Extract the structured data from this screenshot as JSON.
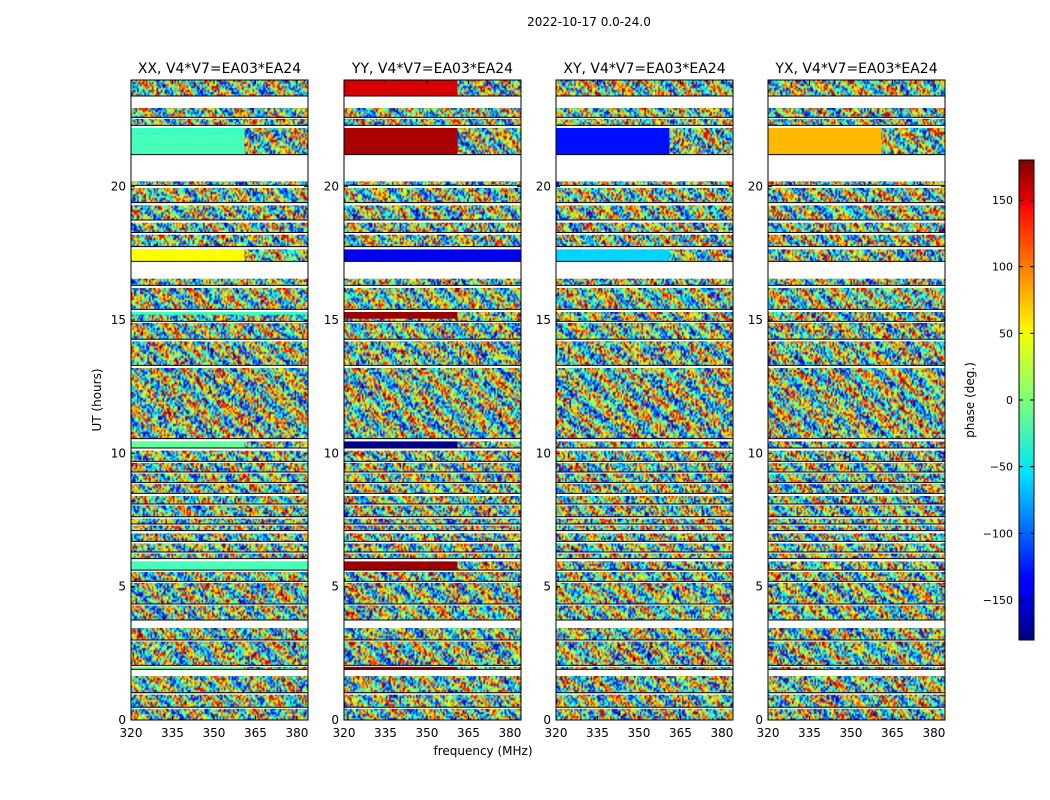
{
  "figure": {
    "suptitle": "2022-10-17 0.0-24.0",
    "xlabel": "frequency (MHz)",
    "ylabel": "UT (hours)"
  },
  "chart_data": {
    "type": "heatmap",
    "colormap": "jet",
    "x_range": [
      320,
      384
    ],
    "y_range": [
      0,
      24
    ],
    "x_ticks": [
      320,
      335,
      350,
      365,
      380
    ],
    "y_ticks": [
      0,
      5,
      10,
      15,
      20
    ],
    "colorbar": {
      "label": "phase (deg.)",
      "range": [
        -180,
        180
      ],
      "ticks": [
        150,
        100,
        50,
        0,
        -50,
        -100,
        -150
      ],
      "tick_labels": [
        "150",
        "100",
        "50",
        "0",
        "−50",
        "−100",
        "−150"
      ]
    },
    "gaps_hours": [
      [
        0.42,
        0.48
      ],
      [
        0.95,
        1.02
      ],
      [
        1.65,
        1.9
      ],
      [
        2.0,
        2.05
      ],
      [
        2.95,
        3.0
      ],
      [
        3.45,
        3.75
      ],
      [
        4.3,
        4.35
      ],
      [
        5.15,
        5.2
      ],
      [
        5.55,
        5.62
      ],
      [
        5.95,
        6.05
      ],
      [
        6.25,
        6.3
      ],
      [
        6.62,
        6.7
      ],
      [
        7.0,
        7.1
      ],
      [
        7.3,
        7.35
      ],
      [
        7.55,
        7.62
      ],
      [
        8.05,
        8.1
      ],
      [
        8.4,
        8.5
      ],
      [
        8.85,
        8.9
      ],
      [
        9.25,
        9.3
      ],
      [
        9.65,
        9.7
      ],
      [
        10.1,
        10.2
      ],
      [
        10.45,
        10.55
      ],
      [
        13.2,
        13.3
      ],
      [
        14.2,
        14.28
      ],
      [
        14.9,
        14.95
      ],
      [
        15.3,
        15.4
      ],
      [
        16.2,
        16.3
      ],
      [
        16.55,
        17.2
      ],
      [
        17.65,
        17.75
      ],
      [
        18.2,
        18.28
      ],
      [
        18.65,
        18.75
      ],
      [
        19.3,
        19.4
      ],
      [
        19.95,
        20.05
      ],
      [
        20.2,
        21.2
      ],
      [
        22.2,
        22.3
      ],
      [
        22.55,
        22.6
      ],
      [
        22.95,
        23.4
      ]
    ],
    "panels": [
      {
        "title": "XX, V4*V7=EA03*EA24",
        "solid_bands": [
          {
            "h0": 21.2,
            "h1": 22.0,
            "f1": 361,
            "phase": -20
          },
          {
            "h0": 22.0,
            "h1": 22.2,
            "f1": 361,
            "phase": -25
          },
          {
            "h0": 17.2,
            "h1": 17.65,
            "f1": 361,
            "phase": 45
          },
          {
            "h0": 15.2,
            "h1": 15.3,
            "f1": 384,
            "phase": -25
          },
          {
            "h0": 10.2,
            "h1": 10.45,
            "f1": 361,
            "phase": -10
          },
          {
            "h0": 1.9,
            "h1": 2.0,
            "f1": 361,
            "phase": -10
          },
          {
            "h0": 5.62,
            "h1": 5.95,
            "f1": 384,
            "phase": -20
          }
        ]
      },
      {
        "title": "YY, V4*V7=EA03*EA24",
        "solid_bands": [
          {
            "h0": 21.2,
            "h1": 22.2,
            "f1": 361,
            "phase": 165
          },
          {
            "h0": 23.4,
            "h1": 24.0,
            "f1": 361,
            "phase": 150
          },
          {
            "h0": 17.2,
            "h1": 17.65,
            "f1": 384,
            "phase": -140
          },
          {
            "h0": 15.05,
            "h1": 15.3,
            "f1": 361,
            "phase": 170
          },
          {
            "h0": 10.2,
            "h1": 10.45,
            "f1": 361,
            "phase": -175
          },
          {
            "h0": 5.62,
            "h1": 5.95,
            "f1": 361,
            "phase": 170
          },
          {
            "h0": 1.9,
            "h1": 2.0,
            "f1": 361,
            "phase": 175
          }
        ]
      },
      {
        "title": "XY, V4*V7=EA03*EA24",
        "solid_bands": [
          {
            "h0": 21.2,
            "h1": 22.2,
            "f1": 361,
            "phase": -130
          },
          {
            "h0": 17.2,
            "h1": 17.65,
            "f1": 361,
            "phase": -60
          }
        ]
      },
      {
        "title": "YX, V4*V7=EA03*EA24",
        "solid_bands": [
          {
            "h0": 21.2,
            "h1": 22.2,
            "f1": 361,
            "phase": 70
          }
        ]
      }
    ]
  }
}
